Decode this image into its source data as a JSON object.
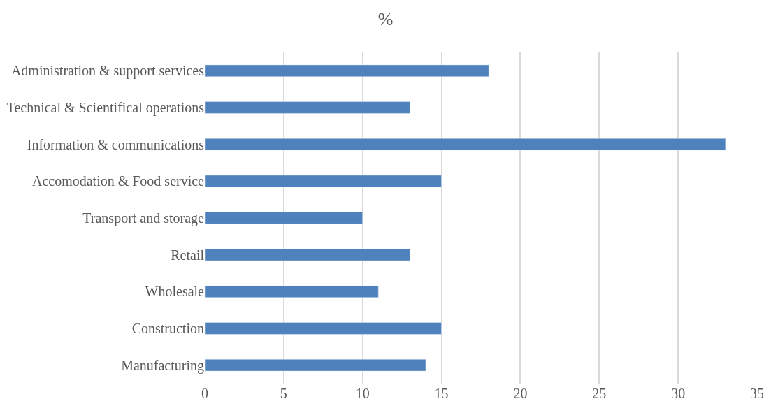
{
  "chart_data": {
    "type": "bar",
    "orientation": "horizontal",
    "title": "%",
    "categories": [
      "Administration & support services",
      "Technical & Scientifical operations",
      "Information & communications",
      "Accomodation & Food service",
      "Transport and storage",
      "Retail",
      "Wholesale",
      "Construction",
      "Manufacturing"
    ],
    "values": [
      18,
      13,
      33,
      15,
      10,
      13,
      11,
      15,
      14
    ],
    "color": "#4f81bd",
    "xlim": [
      0,
      35
    ],
    "xticks": [
      0,
      5,
      10,
      15,
      20,
      25,
      30,
      35
    ],
    "grid": "x",
    "legend": false
  }
}
